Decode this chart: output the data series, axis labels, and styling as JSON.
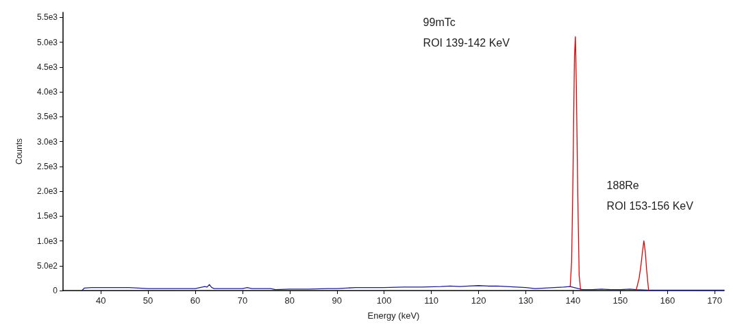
{
  "chart_data": {
    "type": "line",
    "xlabel": "Energy (keV)",
    "ylabel": "Counts",
    "xlim": [
      32,
      172
    ],
    "ylim": [
      0,
      5600
    ],
    "xticks": [
      40,
      50,
      60,
      70,
      80,
      90,
      100,
      110,
      120,
      130,
      140,
      150,
      160,
      170
    ],
    "yticks": [
      0,
      {
        "value": 500,
        "label": "5.0e2"
      },
      {
        "value": 1000,
        "label": "1.0e3"
      },
      {
        "value": 1500,
        "label": "1.5e3"
      },
      {
        "value": 2000,
        "label": "2.0e3"
      },
      {
        "value": 2500,
        "label": "2.5e3"
      },
      {
        "value": 3000,
        "label": "3.0e3"
      },
      {
        "value": 3500,
        "label": "3.5e3"
      },
      {
        "value": 4000,
        "label": "4.0e3"
      },
      {
        "value": 4500,
        "label": "4.5e3"
      },
      {
        "value": 5000,
        "label": "5.0e3"
      },
      {
        "value": 5500,
        "label": "5.5e3"
      }
    ],
    "grid": false,
    "marker": "none",
    "line_style": "solid",
    "series": [
      {
        "color": "#1c1c8a",
        "x": [
          36,
          36.5,
          38,
          40,
          42,
          44,
          46,
          48,
          50,
          52,
          54,
          56,
          58,
          60,
          61,
          62,
          62.5,
          63,
          63.5,
          64,
          66,
          68,
          70,
          71,
          72,
          74,
          76,
          77,
          80,
          84,
          88,
          90,
          92,
          94,
          96,
          100,
          104,
          108,
          112,
          114,
          116,
          118,
          120,
          122,
          124,
          126,
          128,
          130,
          132,
          134,
          136,
          138,
          139.4,
          142,
          144,
          146,
          148,
          150,
          152,
          153.4,
          156,
          160,
          165,
          172
        ],
        "values": [
          0,
          50,
          60,
          60,
          60,
          60,
          60,
          50,
          40,
          40,
          40,
          40,
          40,
          40,
          60,
          80,
          70,
          120,
          60,
          40,
          40,
          40,
          40,
          60,
          40,
          40,
          40,
          20,
          30,
          30,
          40,
          40,
          50,
          60,
          60,
          60,
          70,
          70,
          80,
          90,
          80,
          90,
          100,
          90,
          90,
          80,
          70,
          60,
          40,
          50,
          60,
          70,
          80,
          20,
          20,
          30,
          20,
          20,
          30,
          20,
          10,
          10,
          10,
          10
        ]
      },
      {
        "color": "#e00000",
        "x": [
          139.4,
          139.7,
          139.9,
          140.1,
          140.3,
          140.5,
          140.7,
          140.9,
          141.1,
          141.3,
          141.6
        ],
        "values": [
          80,
          580,
          1710,
          3170,
          4700,
          5110,
          4150,
          2640,
          1400,
          300,
          20
        ]
      },
      {
        "color": "#e00000",
        "x": [
          153.4,
          154,
          154.4,
          154.7,
          155,
          155.3,
          155.6,
          156
        ],
        "values": [
          20,
          250,
          520,
          780,
          1000,
          780,
          400,
          10
        ]
      }
    ],
    "annotations": [
      "99mTc\nROI 139-142 KeV",
      "188Re\nROI 153-156 KeV"
    ]
  }
}
